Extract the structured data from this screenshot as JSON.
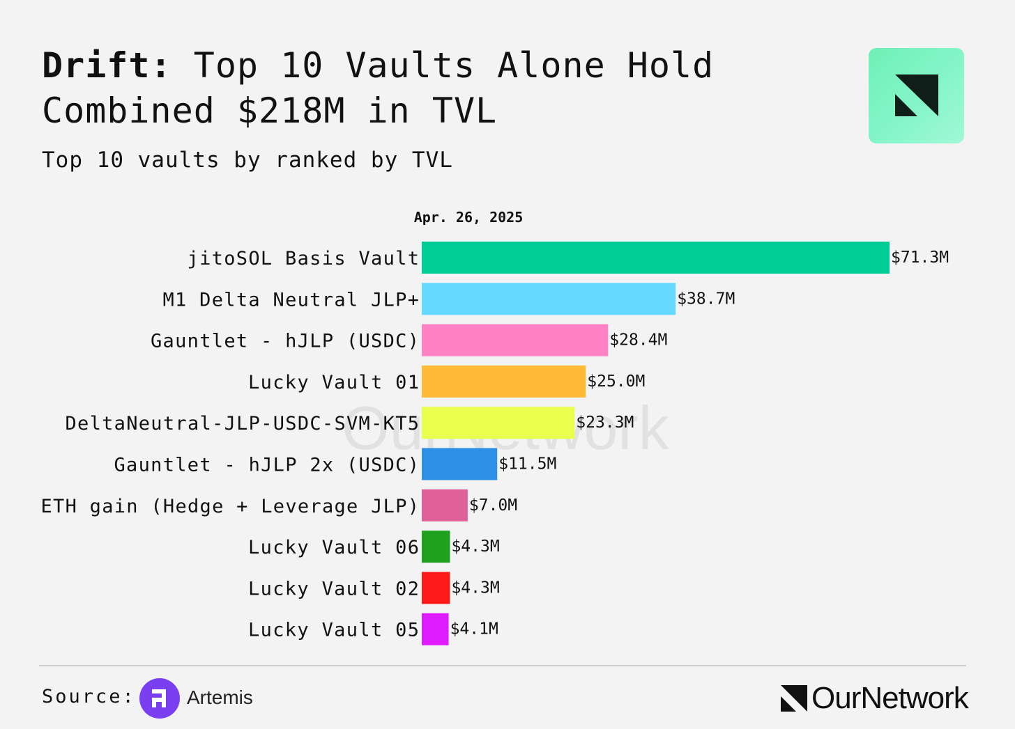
{
  "header": {
    "title_bold": "Drift:",
    "title_rest_line1": " Top 10 Vaults Alone Hold",
    "title_line2": "Combined $218M in TVL",
    "subtitle": "Top 10 vaults by ranked by TVL"
  },
  "logo": {
    "icon": "ournetwork-logo-icon",
    "bg_color": "#7ef3c2"
  },
  "chart_data": {
    "type": "bar",
    "orientation": "horizontal",
    "date_label": "Apr. 26, 2025",
    "categories": [
      "jitoSOL Basis Vault",
      "M1 Delta Neutral JLP+",
      "Gauntlet - hJLP (USDC)",
      "Lucky Vault 01",
      "DeltaNeutral-JLP-USDC-SVM-KT5",
      "Gauntlet - hJLP 2x (USDC)",
      "ETH gain (Hedge + Leverage JLP)",
      "Lucky Vault 06",
      "Lucky Vault 02",
      "Lucky Vault 05"
    ],
    "values": [
      71.3,
      38.7,
      28.4,
      25.0,
      23.3,
      11.5,
      7.0,
      4.3,
      4.3,
      4.1
    ],
    "value_labels": [
      "$71.3M",
      "$38.7M",
      "$28.4M",
      "$25.0M",
      "$23.3M",
      "$11.5M",
      "$7.0M",
      "$4.3M",
      "$4.3M",
      "$4.1M"
    ],
    "colors": [
      "#00cc96",
      "#66d9ff",
      "#ff82c5",
      "#ffbb38",
      "#e8ff4d",
      "#2e8fe6",
      "#e0609a",
      "#1fa11f",
      "#ff1a1a",
      "#de1aff"
    ],
    "xlim": [
      0,
      71.3
    ],
    "unit": "USD millions",
    "grid": false,
    "watermark": "OurNetwork"
  },
  "footer": {
    "source_label": "Source:",
    "source_name": "Artemis",
    "source_icon": "artemis-logo-icon",
    "brand_name": "OurNetwork",
    "brand_icon": "ournetwork-mark-icon"
  }
}
